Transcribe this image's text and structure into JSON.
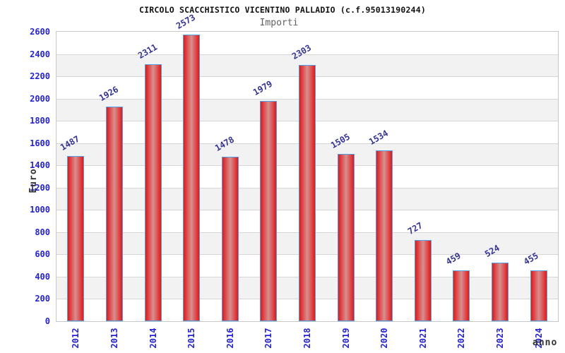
{
  "chart_data": {
    "type": "bar",
    "main_title": "CIRCOLO SCACCHISTICO VICENTINO PALLADIO (c.f.95013190244)",
    "title": "Importi",
    "categories": [
      "2012",
      "2013",
      "2014",
      "2015",
      "2016",
      "2017",
      "2018",
      "2019",
      "2020",
      "2021",
      "2022",
      "2023",
      "2024"
    ],
    "values": [
      1487,
      1926,
      2311,
      2573,
      1478,
      1979,
      2303,
      1505,
      1534,
      727,
      459,
      524,
      455
    ],
    "xlabel": "anno",
    "ylabel": "Euro",
    "ylim": [
      0,
      2600
    ],
    "ytick_step": 200,
    "ytick_labels": [
      "0",
      "200",
      "400",
      "600",
      "800",
      "1000",
      "1200",
      "1400",
      "1600",
      "1800",
      "2000",
      "2200",
      "2400",
      "2600"
    ],
    "grid": true,
    "legend_position": "none",
    "colors": {
      "title": "#111111",
      "subtitle": "#606060",
      "tick_label_blue": "#2222dd",
      "value_label_navy": "#333399",
      "axis_label": "#333333",
      "bar_edge_red": "#e41717",
      "bar_mid_red": "#d69090",
      "bar_border_blue": "#4da3e8",
      "band_gray": "#f2f2f2",
      "gridline": "#d6d6d6",
      "frame": "#c8c8c8",
      "background": "#ffffff"
    }
  }
}
